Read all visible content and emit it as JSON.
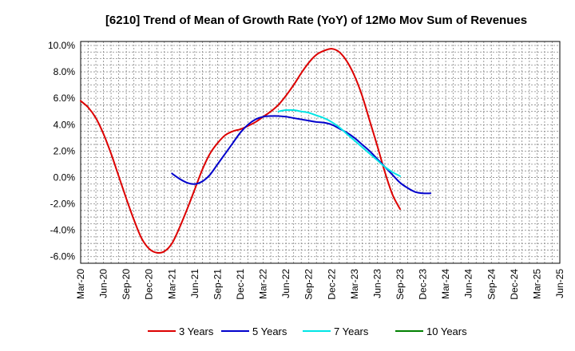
{
  "chart_data": {
    "type": "line",
    "title": "[6210]  Trend of Mean of Growth Rate (YoY) of 12Mo Mov Sum of Revenues",
    "xlabel": "",
    "ylabel": "",
    "ylim": [
      -6.5,
      10.3
    ],
    "y_ticks": [
      10,
      8,
      6,
      4,
      2,
      0,
      -2,
      -4,
      -6
    ],
    "y_tick_labels": [
      "10.0%",
      "8.0%",
      "6.0%",
      "4.0%",
      "2.0%",
      "0.0%",
      "-2.0%",
      "-4.0%",
      "-6.0%"
    ],
    "x_tick_labels": [
      "Mar-20",
      "Jun-20",
      "Sep-20",
      "Dec-20",
      "Mar-21",
      "Jun-21",
      "Sep-21",
      "Dec-21",
      "Mar-22",
      "Jun-22",
      "Sep-22",
      "Dec-22",
      "Mar-23",
      "Jun-23",
      "Sep-23",
      "Dec-23",
      "Mar-24",
      "Jun-24",
      "Sep-24",
      "Dec-24",
      "Mar-25",
      "Jun-25"
    ],
    "grid": true,
    "legend_position": "bottom",
    "series": [
      {
        "name": "3 Years",
        "color": "#dd0000",
        "values": [
          [
            0,
            5.8
          ],
          [
            1,
            5.3
          ],
          [
            2,
            4.5
          ],
          [
            3,
            3.3
          ],
          [
            4,
            1.8
          ],
          [
            5,
            0.1
          ],
          [
            6,
            -1.6
          ],
          [
            7,
            -3.2
          ],
          [
            8,
            -4.6
          ],
          [
            9,
            -5.4
          ],
          [
            10,
            -5.7
          ],
          [
            11,
            -5.6
          ],
          [
            12,
            -5.0
          ],
          [
            13,
            -3.8
          ],
          [
            14,
            -2.4
          ],
          [
            15,
            -0.9
          ],
          [
            16,
            0.6
          ],
          [
            17,
            1.8
          ],
          [
            18,
            2.6
          ],
          [
            19,
            3.2
          ],
          [
            20,
            3.5
          ],
          [
            21,
            3.65
          ],
          [
            22,
            3.9
          ],
          [
            23,
            4.2
          ],
          [
            24,
            4.6
          ],
          [
            25,
            5.0
          ],
          [
            26,
            5.5
          ],
          [
            27,
            6.2
          ],
          [
            28,
            7.0
          ],
          [
            29,
            7.9
          ],
          [
            30,
            8.7
          ],
          [
            31,
            9.3
          ],
          [
            32,
            9.6
          ],
          [
            33,
            9.75
          ],
          [
            34,
            9.5
          ],
          [
            35,
            8.8
          ],
          [
            36,
            7.7
          ],
          [
            37,
            6.2
          ],
          [
            38,
            4.3
          ],
          [
            39,
            2.4
          ],
          [
            40,
            0.4
          ],
          [
            41,
            -1.3
          ],
          [
            42,
            -2.4
          ]
        ]
      },
      {
        "name": "5 Years",
        "color": "#0000cc",
        "values": [
          [
            12,
            0.3
          ],
          [
            13,
            -0.1
          ],
          [
            14,
            -0.4
          ],
          [
            15,
            -0.5
          ],
          [
            16,
            -0.3
          ],
          [
            17,
            0.2
          ],
          [
            18,
            1.0
          ],
          [
            19,
            1.8
          ],
          [
            20,
            2.6
          ],
          [
            21,
            3.4
          ],
          [
            22,
            4.0
          ],
          [
            23,
            4.4
          ],
          [
            24,
            4.6
          ],
          [
            25,
            4.65
          ],
          [
            26,
            4.65
          ],
          [
            27,
            4.6
          ],
          [
            28,
            4.5
          ],
          [
            29,
            4.4
          ],
          [
            30,
            4.3
          ],
          [
            31,
            4.2
          ],
          [
            32,
            4.15
          ],
          [
            33,
            4.0
          ],
          [
            34,
            3.7
          ],
          [
            35,
            3.4
          ],
          [
            36,
            3.0
          ],
          [
            37,
            2.5
          ],
          [
            38,
            2.0
          ],
          [
            39,
            1.4
          ],
          [
            40,
            0.8
          ],
          [
            41,
            0.2
          ],
          [
            42,
            -0.4
          ],
          [
            43,
            -0.8
          ],
          [
            44,
            -1.1
          ],
          [
            45,
            -1.2
          ],
          [
            46,
            -1.2
          ]
        ]
      },
      {
        "name": "7 Years",
        "color": "#00e5e5",
        "values": [
          [
            26,
            5.0
          ],
          [
            27,
            5.1
          ],
          [
            28,
            5.1
          ],
          [
            29,
            5.0
          ],
          [
            30,
            4.9
          ],
          [
            31,
            4.7
          ],
          [
            32,
            4.5
          ],
          [
            33,
            4.2
          ],
          [
            34,
            3.8
          ],
          [
            35,
            3.3
          ],
          [
            36,
            2.8
          ],
          [
            37,
            2.3
          ],
          [
            38,
            1.8
          ],
          [
            39,
            1.3
          ],
          [
            40,
            0.8
          ],
          [
            41,
            0.4
          ],
          [
            42,
            0.1
          ]
        ]
      },
      {
        "name": "10 Years",
        "color": "#008000",
        "values": []
      }
    ],
    "x_units_note": "x values are month offsets from Mar-20"
  }
}
